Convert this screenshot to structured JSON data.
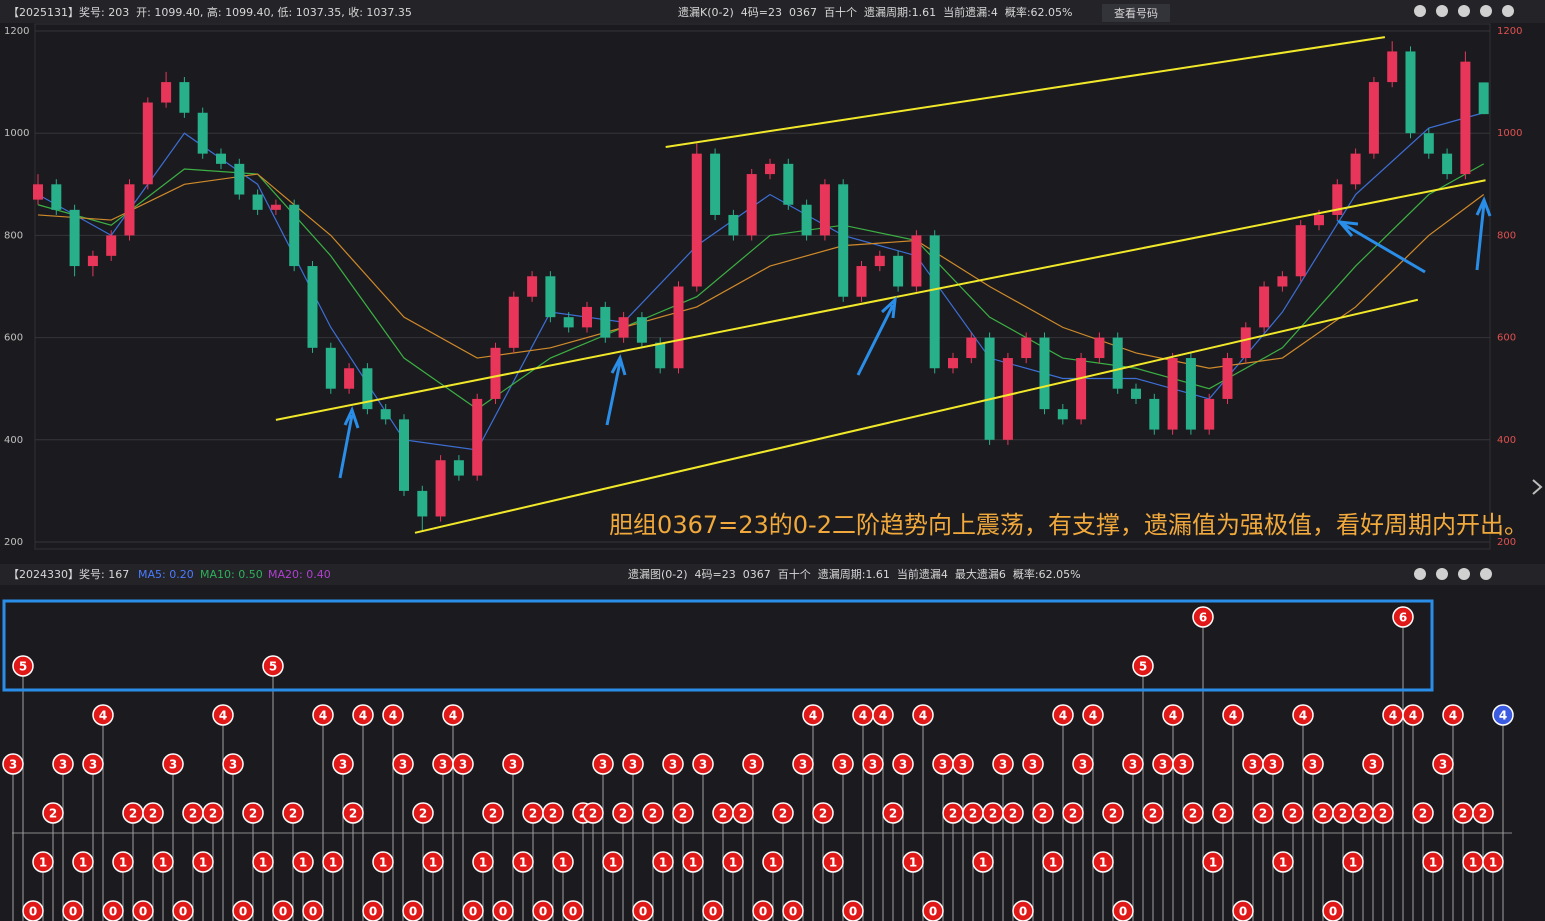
{
  "header": {
    "left": "【2025131】奖号: 203  开: 1099.40, 高: 1099.40, 低: 1037.35, 收: 1037.35",
    "center": "遗漏K(0-2)  4码=23  0367  百十个  遗漏周期:1.61  当前遗漏:4  概率:62.05%",
    "button": "查看号码"
  },
  "subheader": {
    "left": "【2024330】奖号: 167",
    "ma": [
      "MA5: 0.20",
      "MA10: 0.50",
      "MA20: 0.40"
    ],
    "center": "遗漏图(0-2)  4码=23  0367  百十个  遗漏周期:1.61  当前遗漏4  最大遗漏6  概率:62.05%"
  },
  "chart_data": [
    {
      "type": "candlestick",
      "up_color": "#e8365a",
      "down_color": "#27b08a",
      "grid": true,
      "ylim": [
        200,
        1200
      ],
      "yticks": [
        200,
        400,
        600,
        800,
        1000,
        1200
      ],
      "open": [
        870,
        900,
        850,
        740,
        760,
        800,
        900,
        1060,
        1100,
        1040,
        960,
        940,
        880,
        850,
        860,
        740,
        580,
        500,
        540,
        460,
        440,
        300,
        250,
        360,
        330,
        480,
        580,
        680,
        720,
        640,
        620,
        660,
        600,
        640,
        590,
        540,
        700,
        960,
        840,
        800,
        920,
        940,
        860,
        800,
        900,
        680,
        740,
        760,
        700,
        800,
        540,
        560,
        600,
        400,
        560,
        600,
        460,
        440,
        560,
        600,
        500,
        480,
        420,
        560,
        420,
        480,
        560,
        620,
        700,
        720,
        820,
        840,
        900,
        960,
        1100,
        1160,
        1000,
        960,
        920,
        1099.4
      ],
      "close": [
        900,
        850,
        740,
        760,
        800,
        900,
        1060,
        1100,
        1040,
        960,
        940,
        880,
        850,
        860,
        740,
        580,
        500,
        540,
        460,
        440,
        300,
        250,
        360,
        330,
        480,
        580,
        680,
        720,
        640,
        620,
        660,
        600,
        640,
        590,
        540,
        700,
        960,
        840,
        800,
        920,
        940,
        860,
        800,
        900,
        680,
        740,
        760,
        700,
        800,
        540,
        560,
        600,
        400,
        560,
        600,
        460,
        440,
        560,
        600,
        500,
        480,
        420,
        560,
        420,
        480,
        560,
        620,
        700,
        720,
        820,
        840,
        900,
        960,
        1100,
        1160,
        1000,
        960,
        920,
        1140,
        1037.35
      ],
      "high": [
        920,
        910,
        860,
        770,
        810,
        910,
        1070,
        1120,
        1110,
        1050,
        970,
        950,
        890,
        870,
        870,
        750,
        590,
        550,
        550,
        470,
        450,
        310,
        370,
        370,
        490,
        590,
        690,
        730,
        730,
        650,
        670,
        670,
        650,
        650,
        600,
        710,
        980,
        970,
        850,
        930,
        950,
        950,
        870,
        910,
        910,
        750,
        770,
        770,
        810,
        810,
        570,
        610,
        610,
        570,
        610,
        610,
        470,
        570,
        610,
        610,
        510,
        490,
        570,
        570,
        490,
        570,
        630,
        710,
        730,
        830,
        850,
        910,
        970,
        1110,
        1180,
        1170,
        1010,
        970,
        1160,
        1099.4
      ],
      "low": [
        860,
        840,
        720,
        720,
        750,
        790,
        890,
        1050,
        1030,
        950,
        930,
        870,
        840,
        840,
        730,
        570,
        490,
        490,
        450,
        430,
        290,
        220,
        240,
        320,
        320,
        470,
        570,
        670,
        630,
        610,
        610,
        590,
        590,
        580,
        530,
        530,
        690,
        830,
        790,
        790,
        910,
        850,
        790,
        790,
        670,
        670,
        730,
        690,
        690,
        530,
        530,
        550,
        390,
        390,
        550,
        450,
        430,
        430,
        550,
        490,
        470,
        410,
        410,
        410,
        410,
        470,
        550,
        610,
        690,
        710,
        810,
        830,
        890,
        950,
        1090,
        990,
        950,
        910,
        910,
        1037.35
      ],
      "ma": [
        {
          "color": "#3d6fd6",
          "x": [
            0,
            4,
            8,
            12,
            16,
            20,
            24,
            28,
            32,
            36,
            40,
            44,
            48,
            52,
            56,
            60,
            64,
            68,
            72,
            76,
            79
          ],
          "values": [
            880,
            800,
            1000,
            900,
            620,
            400,
            380,
            650,
            630,
            780,
            880,
            800,
            760,
            560,
            520,
            520,
            480,
            650,
            880,
            1010,
            1040
          ]
        },
        {
          "color": "#3cb043",
          "x": [
            0,
            4,
            8,
            12,
            16,
            20,
            24,
            28,
            32,
            36,
            40,
            44,
            48,
            52,
            56,
            60,
            64,
            68,
            72,
            76,
            79
          ],
          "values": [
            860,
            820,
            930,
            920,
            760,
            560,
            460,
            560,
            620,
            680,
            800,
            820,
            790,
            640,
            560,
            540,
            500,
            580,
            740,
            880,
            940
          ]
        },
        {
          "color": "#d08a2a",
          "x": [
            0,
            4,
            8,
            12,
            16,
            20,
            24,
            28,
            32,
            36,
            40,
            44,
            48,
            52,
            56,
            60,
            64,
            68,
            72,
            76,
            79
          ],
          "values": [
            840,
            830,
            900,
            920,
            800,
            640,
            560,
            580,
            620,
            660,
            740,
            780,
            790,
            700,
            620,
            570,
            540,
            560,
            660,
            800,
            880
          ]
        }
      ],
      "trend_lines": [
        {
          "color": "#f2e82a",
          "x": [
            34.3,
            73.6
          ],
          "values": [
            973,
            1188
          ]
        },
        {
          "color": "#f2e82a",
          "x": [
            13,
            79.1
          ],
          "values": [
            439,
            908
          ]
        },
        {
          "color": "#f2e82a",
          "x": [
            20.6,
            75.4
          ],
          "values": [
            218,
            674
          ]
        }
      ],
      "annotation": "胆组0367=23的0-2二阶趋势向上震荡，有支撑，遗漏值为强极值，看好周期内开出。"
    },
    {
      "type": "lollipop",
      "color": "#e01818",
      "current_color": "#3b5ce0",
      "values": [
        3,
        5,
        0,
        1,
        2,
        3,
        0,
        1,
        3,
        4,
        0,
        1,
        2,
        0,
        2,
        1,
        3,
        0,
        2,
        1,
        2,
        4,
        3,
        0,
        2,
        1,
        5,
        0,
        2,
        1,
        0,
        4,
        1,
        3,
        2,
        4,
        0,
        1,
        4,
        3,
        0,
        2,
        1,
        3,
        4,
        3,
        0,
        1,
        2,
        0,
        3,
        1,
        2,
        0,
        2,
        1,
        0,
        2,
        2,
        3,
        1,
        2,
        3,
        0,
        2,
        1,
        3,
        2,
        1,
        3,
        0,
        2,
        1,
        2,
        3,
        0,
        1,
        2,
        0,
        3,
        4,
        2,
        1,
        3,
        0,
        4,
        3,
        4,
        2,
        3,
        1,
        4,
        0,
        3,
        2,
        3,
        2,
        1,
        2,
        3,
        2,
        0,
        3,
        2,
        1,
        4,
        2,
        3,
        4,
        1,
        2,
        0,
        3,
        5,
        2,
        3,
        4,
        3,
        2,
        6,
        1,
        2,
        4,
        0,
        3,
        2,
        3,
        1,
        2,
        4,
        3,
        2,
        0,
        2,
        1,
        2,
        3,
        2,
        4,
        6,
        4,
        2,
        1,
        3,
        4,
        2,
        1,
        2,
        1,
        4
      ]
    }
  ]
}
